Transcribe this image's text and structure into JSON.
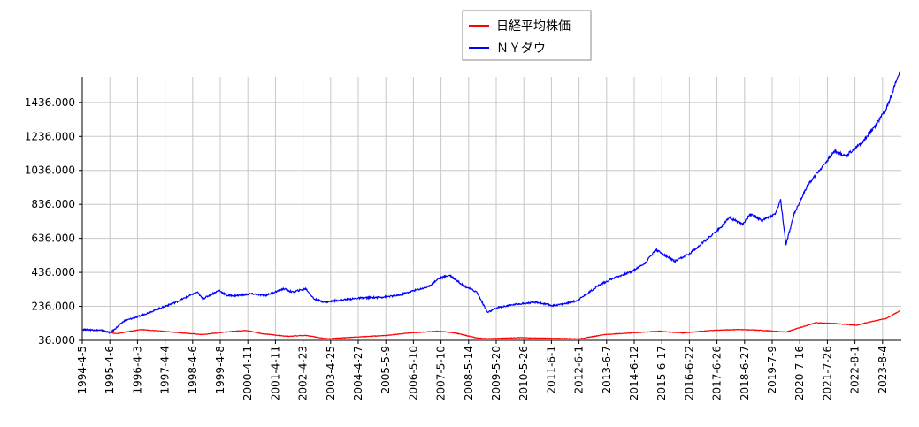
{
  "chart_data": {
    "type": "line",
    "legend": {
      "position": "top-center"
    },
    "grid": true,
    "ylim": [
      36,
      1586
    ],
    "yticks": [
      36,
      236,
      436,
      636,
      836,
      1036,
      1236,
      1436
    ],
    "ytick_labels": [
      "36.000",
      "236.000",
      "436.000",
      "636.000",
      "836.000",
      "1036.000",
      "1236.000",
      "1436.000"
    ],
    "xticks": [
      "1994-4-5",
      "1995-4-6",
      "1996-4-3",
      "1997-4-4",
      "1998-4-6",
      "1999-4-8",
      "2000-4-11",
      "2001-4-11",
      "2002-4-23",
      "2003-4-25",
      "2004-4-27",
      "2005-5-9",
      "2006-5-10",
      "2007-5-10",
      "2008-5-14",
      "2009-5-20",
      "2010-5-26",
      "2011-6-1",
      "2012-6-1",
      "2013-6-7",
      "2014-6-12",
      "2015-6-17",
      "2016-6-22",
      "2017-6-26",
      "2018-6-27",
      "2019-7-9",
      "2020-7-16",
      "2021-7-26",
      "2022-8-1",
      "2023-8-4"
    ],
    "series": [
      {
        "name": "日経平均株価",
        "color": "#ff0000",
        "x": [
          1994.26,
          1995.0,
          1995.5,
          1996.4,
          1997.2,
          1997.8,
          1998.7,
          1999.5,
          2000.3,
          2000.9,
          2001.8,
          2002.5,
          2003.3,
          2004.3,
          2005.5,
          2006.3,
          2007.4,
          2008.0,
          2008.8,
          2009.2,
          2010.3,
          2011.5,
          2012.6,
          2013.5,
          2014.5,
          2015.5,
          2016.4,
          2017.5,
          2018.5,
          2019.3,
          2020.2,
          2020.9,
          2021.3,
          2022.0,
          2022.8,
          2023.3,
          2023.9,
          2024.4
        ],
        "y": [
          100,
          95,
          75,
          100,
          90,
          82,
          70,
          85,
          95,
          75,
          60,
          65,
          45,
          55,
          65,
          80,
          90,
          80,
          50,
          45,
          52,
          48,
          45,
          70,
          80,
          90,
          80,
          95,
          100,
          95,
          85,
          120,
          140,
          135,
          125,
          145,
          165,
          210
        ]
      },
      {
        "name": "ＮＹダウ",
        "color": "#0000ff",
        "x": [
          1994.26,
          1995.0,
          1995.3,
          1995.8,
          1996.4,
          1997.2,
          1997.7,
          1998.5,
          1998.7,
          1999.3,
          1999.6,
          2000.0,
          2000.5,
          2001.0,
          2001.7,
          2002.0,
          2002.5,
          2002.8,
          2003.2,
          2003.6,
          2004.5,
          2005.3,
          2005.9,
          2006.5,
          2007.0,
          2007.4,
          2007.8,
          2008.3,
          2008.8,
          2009.2,
          2009.6,
          2010.3,
          2011.0,
          2011.6,
          2012.0,
          2012.5,
          2013.3,
          2013.8,
          2014.5,
          2015.0,
          2015.4,
          2015.7,
          2016.1,
          2016.6,
          2017.2,
          2017.8,
          2018.1,
          2018.6,
          2018.9,
          2019.3,
          2019.8,
          2020.0,
          2020.2,
          2020.5,
          2021.0,
          2021.5,
          2022.0,
          2022.4,
          2022.7,
          2023.0,
          2023.5,
          2023.9,
          2024.4
        ],
        "y": [
          100,
          95,
          80,
          150,
          180,
          230,
          260,
          320,
          280,
          330,
          300,
          300,
          310,
          300,
          340,
          320,
          340,
          280,
          260,
          270,
          285,
          290,
          300,
          330,
          350,
          400,
          420,
          360,
          320,
          200,
          230,
          250,
          260,
          240,
          250,
          270,
          360,
          400,
          440,
          490,
          570,
          540,
          500,
          540,
          620,
          700,
          760,
          720,
          780,
          740,
          780,
          860,
          600,
          780,
          950,
          1050,
          1150,
          1120,
          1160,
          1200,
          1300,
          1400,
          1620
        ]
      }
    ]
  }
}
